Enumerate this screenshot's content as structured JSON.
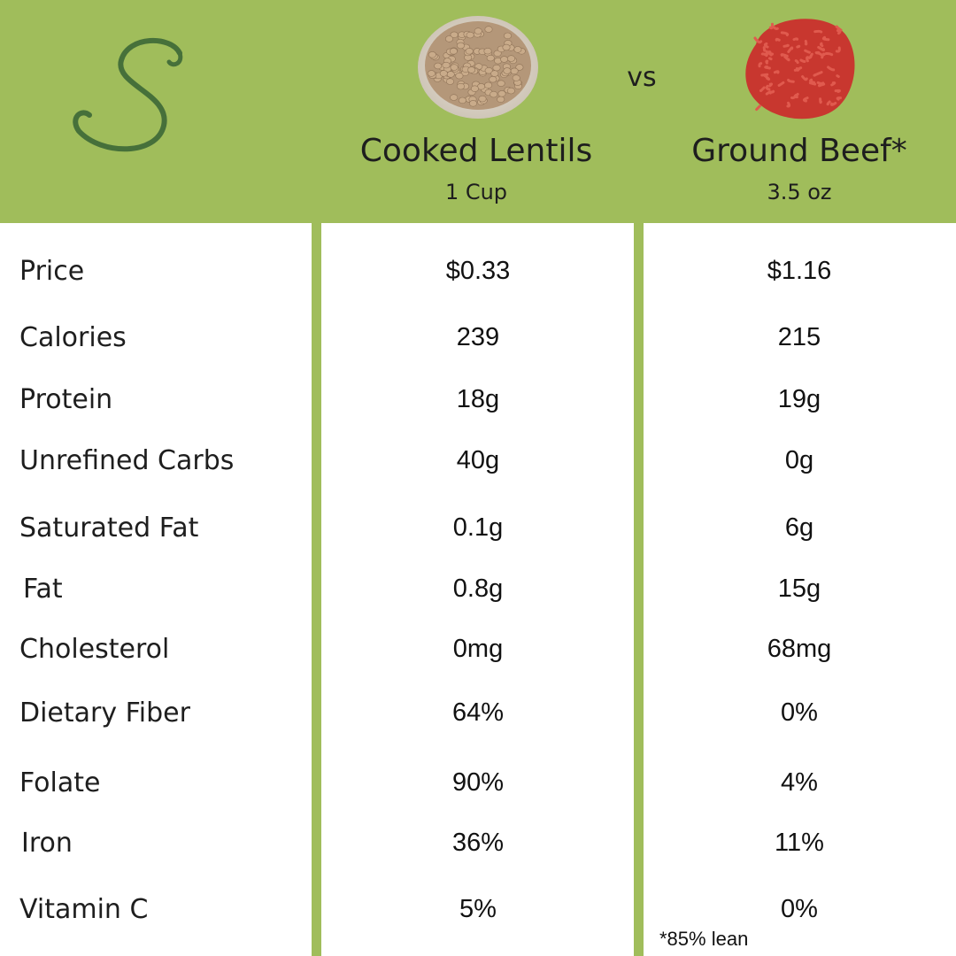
{
  "header": {
    "vs_label": "vs",
    "columns": [
      {
        "title": "Cooked Lentils",
        "serving": "1 Cup"
      },
      {
        "title": "Ground Beef*",
        "serving": "3.5 oz"
      }
    ]
  },
  "colors": {
    "accent_green": "#a0bd5b",
    "logo_green": "#46703a",
    "text": "#1e1e1e"
  },
  "logo": {
    "letter": "S"
  },
  "rows": [
    {
      "label": "Price",
      "lentils": "$0.33",
      "beef": "$1.16"
    },
    {
      "label": "Calories",
      "lentils": "239",
      "beef": "215"
    },
    {
      "label": "Protein",
      "lentils": "18g",
      "beef": "19g"
    },
    {
      "label": "Unrefined Carbs",
      "lentils": "40g",
      "beef": "0g"
    },
    {
      "label": "Saturated Fat",
      "lentils": "0.1g",
      "beef": "6g"
    },
    {
      "label": "Fat",
      "lentils": "0.8g",
      "beef": "15g"
    },
    {
      "label": "Cholesterol",
      "lentils": "0mg",
      "beef": "68mg"
    },
    {
      "label": "Dietary Fiber",
      "lentils": "64%",
      "beef": "0%"
    },
    {
      "label": "Folate",
      "lentils": "90%",
      "beef": "4%"
    },
    {
      "label": "Iron",
      "lentils": "36%",
      "beef": "11%"
    },
    {
      "label": "Vitamin C",
      "lentils": "5%",
      "beef": "0%"
    }
  ],
  "footnote": "*85% lean"
}
